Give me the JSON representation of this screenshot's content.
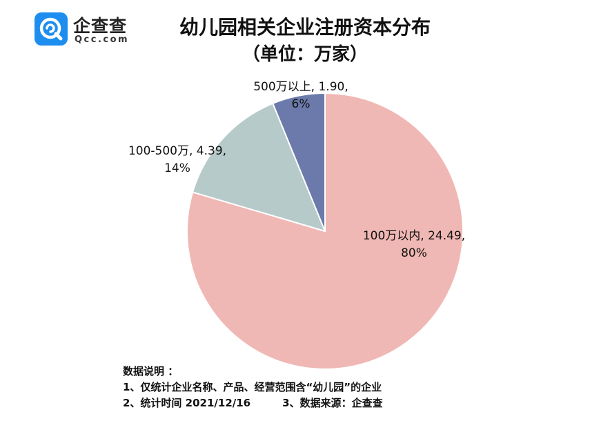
{
  "logo": {
    "name": "企查查",
    "domain": "Qcc.com"
  },
  "title": "幼儿园相关企业注册资本分布",
  "subtitle": "（单位：万家）",
  "chart_data": {
    "type": "pie",
    "title": "幼儿园相关企业注册资本分布",
    "subtitle": "（单位：万家）",
    "unit": "万家",
    "slices": [
      {
        "label": "100万以内",
        "value": 24.49,
        "percent": "80%",
        "color": "#f0b8b4",
        "data_label_line1": "100万以内, 24.49,",
        "data_label_line2": "80%"
      },
      {
        "label": "100-500万",
        "value": 4.39,
        "percent": "14%",
        "color": "#b6cac9",
        "data_label_line1": "100-500万, 4.39,",
        "data_label_line2": "14%"
      },
      {
        "label": "500万以上",
        "value": 1.9,
        "percent": "6%",
        "color": "#6b7aab",
        "data_label_line1": "500万以上, 1.90,",
        "data_label_line2": "6%"
      }
    ],
    "start": "12 o'clock",
    "direction": "clockwise",
    "legend": "none"
  },
  "notes": {
    "heading": "数据说明 ：",
    "line1": "1、仅统计企业名称、产品、经营范围含“幼儿园”的企业",
    "line2_a": "2、统计时间  2021/12/16",
    "line2_b": "3、数据来源：企查查"
  },
  "colors": {
    "logo_blue": "#1d8ef0",
    "slice_border": "#ffffff"
  }
}
